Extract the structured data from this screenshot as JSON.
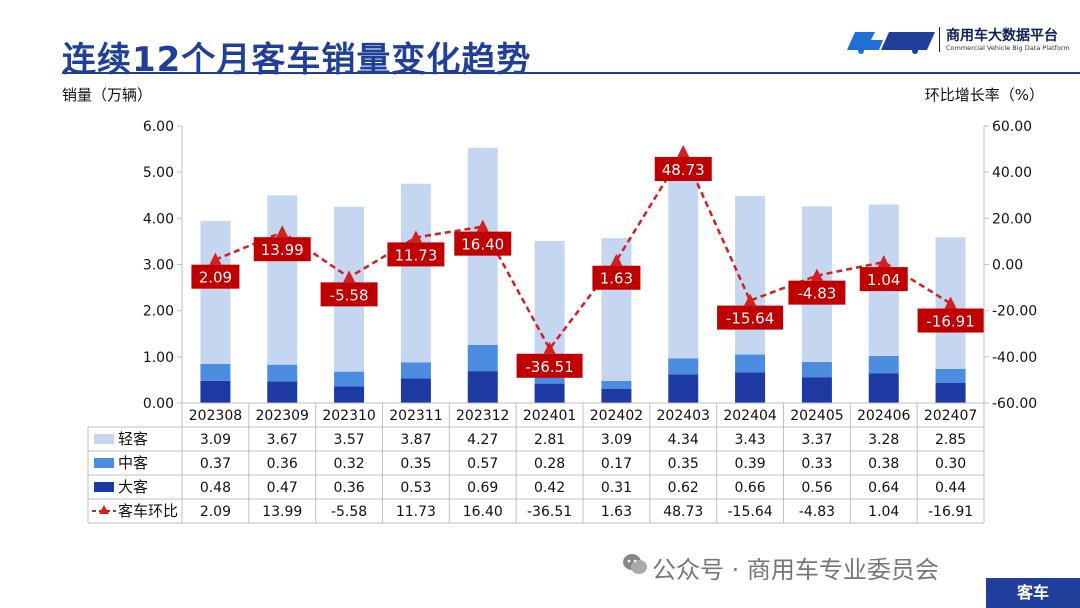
{
  "slide": {
    "title": "连续12个月客车销量变化趋势",
    "logo_cn": "商用车大数据平台",
    "logo_en": "Commercial Vehicle Big Data Platform",
    "footer_wechat": "公众号 · 商用车专业委员会",
    "footer_badge": "客车"
  },
  "colors": {
    "light": "#c5d6f1",
    "medium": "#4d8de0",
    "heavy": "#1c3aa2",
    "line": "#d21f1f",
    "label_bg": "#c00000",
    "title": "#1f3f9a"
  },
  "chart_data": {
    "type": "bar",
    "stacked": true,
    "categories": [
      "202308",
      "202309",
      "202310",
      "202311",
      "202312",
      "202401",
      "202402",
      "202403",
      "202404",
      "202405",
      "202406",
      "202407"
    ],
    "ylabel": "销量（万辆）",
    "ylabel_right": "环比增长率（%）",
    "ylim": [
      0,
      6
    ],
    "ylim_right": [
      -60,
      60
    ],
    "yticks": [
      "0.00",
      "1.00",
      "2.00",
      "3.00",
      "4.00",
      "5.00",
      "6.00"
    ],
    "yticks_right": [
      "-60.00",
      "-40.00",
      "-20.00",
      "0.00",
      "20.00",
      "40.00",
      "60.00"
    ],
    "series": [
      {
        "name": "大客",
        "type": "bar",
        "values": [
          0.48,
          0.47,
          0.36,
          0.53,
          0.69,
          0.42,
          0.31,
          0.62,
          0.66,
          0.56,
          0.64,
          0.44
        ],
        "labels": [
          "0.48",
          "0.47",
          "0.36",
          "0.53",
          "0.69",
          "0.42",
          "0.31",
          "0.62",
          "0.66",
          "0.56",
          "0.64",
          "0.44"
        ]
      },
      {
        "name": "中客",
        "type": "bar",
        "values": [
          0.37,
          0.36,
          0.32,
          0.35,
          0.57,
          0.28,
          0.17,
          0.35,
          0.39,
          0.33,
          0.38,
          0.3
        ],
        "labels": [
          "0.37",
          "0.36",
          "0.32",
          "0.35",
          "0.57",
          "0.28",
          "0.17",
          "0.35",
          "0.39",
          "0.33",
          "0.38",
          "0.30"
        ]
      },
      {
        "name": "轻客",
        "type": "bar",
        "values": [
          3.09,
          3.67,
          3.57,
          3.87,
          4.27,
          2.81,
          3.09,
          4.34,
          3.43,
          3.37,
          3.28,
          2.85
        ],
        "labels": [
          "3.09",
          "3.67",
          "3.57",
          "3.87",
          "4.27",
          "2.81",
          "3.09",
          "4.34",
          "3.43",
          "3.37",
          "3.28",
          "2.85"
        ]
      },
      {
        "name": "客车环比",
        "type": "line",
        "axis": "right",
        "values": [
          2.09,
          13.99,
          -5.58,
          11.73,
          16.4,
          -36.51,
          1.63,
          48.73,
          -15.64,
          -4.83,
          1.04,
          -16.91
        ],
        "labels": [
          "2.09",
          "13.99",
          "-5.58",
          "11.73",
          "16.40",
          "-36.51",
          "1.63",
          "48.73",
          "-15.64",
          "-4.83",
          "1.04",
          "-16.91"
        ]
      }
    ],
    "table_rows": [
      "轻客",
      "中客",
      "大客",
      "客车环比"
    ],
    "grid": false,
    "legend": "table-bottom"
  }
}
